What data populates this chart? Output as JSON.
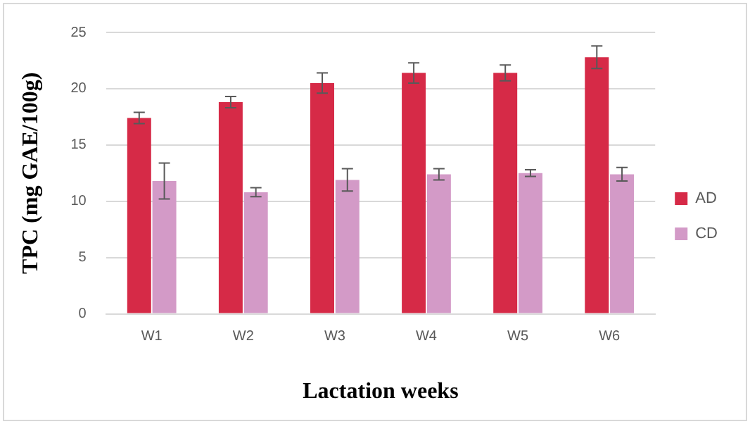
{
  "chart_data": {
    "type": "bar",
    "xlabel": "Lactation weeks",
    "ylabel": "TPC (mg GAE/100g)",
    "categories": [
      "W1",
      "W2",
      "W3",
      "W4",
      "W5",
      "W6"
    ],
    "series": [
      {
        "name": "AD",
        "color": "#d62a47",
        "values": [
          17.4,
          18.8,
          20.5,
          21.4,
          21.4,
          22.8
        ],
        "errors": [
          0.5,
          0.5,
          0.9,
          0.9,
          0.7,
          1.0
        ]
      },
      {
        "name": "CD",
        "color": "#d39ac7",
        "values": [
          11.8,
          10.8,
          11.9,
          12.4,
          12.5,
          12.4
        ],
        "errors": [
          1.6,
          0.4,
          1.0,
          0.5,
          0.3,
          0.6
        ]
      }
    ],
    "ylim": [
      0,
      25
    ],
    "yticks": [
      0,
      5,
      10,
      15,
      20,
      25
    ],
    "grid": "y",
    "legend": "right"
  }
}
